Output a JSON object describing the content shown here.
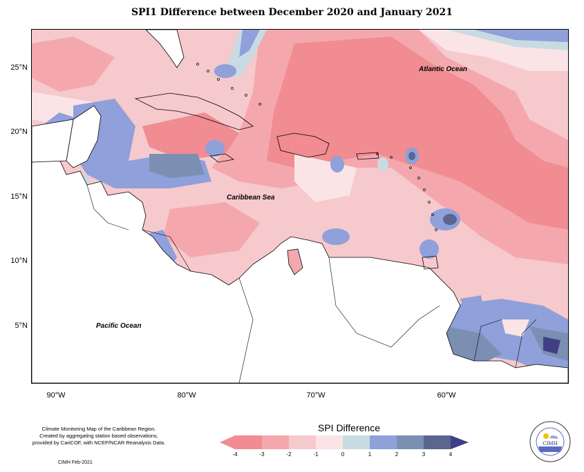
{
  "title": "SPI1 Difference between December 2020 and January 2021",
  "map": {
    "labels": {
      "atlantic": "Atlantic Ocean",
      "caribbean": "Caribbean Sea",
      "pacific": "Pacific Ocean"
    },
    "lat_ticks": [
      "25°N",
      "20°N",
      "15°N",
      "10°N",
      "5°N"
    ],
    "lon_ticks": [
      "90°W",
      "80°W",
      "70°W",
      "60°W"
    ]
  },
  "legend": {
    "title": "SPI Difference",
    "ticks": [
      "-4",
      "-3",
      "-2",
      "-1",
      "0",
      "1",
      "2",
      "3",
      "4"
    ],
    "colors": [
      "#f08c92",
      "#f4a8ad",
      "#f6c9cc",
      "#fbe4e6",
      "#ffffff",
      "#c8dbe2",
      "#8fa0da",
      "#7b8fb3",
      "#5a6590",
      "#3f3f85"
    ]
  },
  "credits": {
    "line1": "Climate Monitoring Map of the Caribbean Region.",
    "line2": "Created by aggregating station based observations,",
    "line3": "provided by CariCOF, with NCEP/NCAR Reanalysis Data.",
    "stamp": "CIMH Feb-2021"
  },
  "logo": {
    "name": "CIMH"
  }
}
